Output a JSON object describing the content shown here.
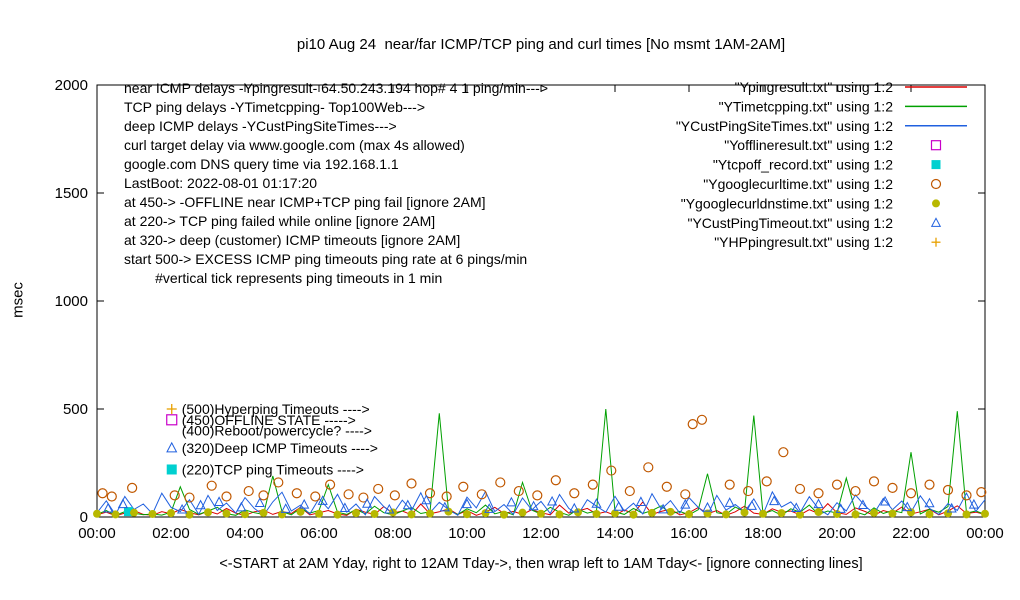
{
  "chart_data": {
    "type": "mixed-time-series",
    "title": "pi10 Aug 24  near/far ICMP/TCP ping and curl times [No msmt 1AM-2AM]",
    "xlabel": "<-START at 2AM Yday, right to 12AM Tday->, then wrap left to 1AM Tday<- [ignore connecting lines]",
    "ylabel": "msec",
    "ylim": [
      0,
      2000
    ],
    "xlim_hours": [
      0,
      24
    ],
    "yticks": [
      0,
      500,
      1000,
      1500,
      2000
    ],
    "xtick_labels": [
      "00:00",
      "02:00",
      "04:00",
      "06:00",
      "08:00",
      "10:00",
      "12:00",
      "14:00",
      "16:00",
      "18:00",
      "20:00",
      "22:00",
      "00:00"
    ],
    "grid": false,
    "legend_position": "top-right",
    "notes": [
      "near ICMP delays -Ypingresult- 64.50.243.194 hop# 4 1 ping/min--->",
      "TCP ping delays -YTimetcpping- Top100Web--->",
      "deep ICMP delays -YCustPingSiteTimes--->",
      "curl target delay via www.google.com (max 4s allowed)",
      "google.com DNS query time via 192.168.1.1",
      "LastBoot: 2022-08-01 01:17:20",
      "at 450-> -OFFLINE near ICMP+TCP ping fail [ignore 2AM]",
      "at 220-> TCP ping failed while online [ignore 2AM]",
      "at 320-> deep (customer) ICMP timeouts [ignore 2AM]",
      "start 500-> EXCESS ICMP ping timeouts ping rate at 6 pings/min",
      "        #vertical tick represents ping timeouts in 1 min"
    ],
    "annotations": [
      {
        "x": 2.02,
        "y": 500,
        "marker": "plus",
        "color": "#e8a000",
        "text": "(500)Hyperping Timeouts ---->"
      },
      {
        "x": 2.02,
        "y": 450,
        "marker": "square-open",
        "color": "#c800c8",
        "text": "(450)OFFLINE STATE ----->"
      },
      {
        "x": 2.02,
        "y": 400,
        "marker": "none",
        "color": "#000000",
        "text": "(400)Reboot/powercycle? ---->"
      },
      {
        "x": 2.02,
        "y": 320,
        "marker": "triangle-open",
        "color": "#2060df",
        "text": "(320)Deep ICMP Timeouts ---->"
      },
      {
        "x": 2.02,
        "y": 220,
        "marker": "square-filled",
        "color": "#00d0d0",
        "text": "(220)TCP ping Timeouts ---->"
      }
    ],
    "series": [
      {
        "name": "near-icmp-ping",
        "label": "\"Ypingresult.txt\" using 1:2",
        "type": "line",
        "color": "#dd0000",
        "x_start": 0,
        "x_step": 0.25,
        "values": [
          10,
          22,
          6,
          18,
          30,
          12,
          8,
          25,
          15,
          35,
          20,
          10,
          28,
          14,
          40,
          18,
          8,
          24,
          32,
          12,
          26,
          16,
          45,
          10,
          20,
          30,
          14,
          8,
          36,
          22,
          12,
          48,
          18,
          28,
          10,
          60,
          15,
          24,
          38,
          12,
          30,
          8,
          22,
          45,
          16,
          26,
          12,
          34,
          20,
          10,
          55,
          18,
          28,
          40,
          14,
          24,
          8,
          32,
          16,
          70,
          12,
          26,
          36,
          10,
          20,
          44,
          15,
          30,
          8,
          24,
          50,
          18,
          12,
          38,
          22,
          28,
          10,
          34,
          16,
          62,
          20,
          12,
          42,
          26,
          8,
          30,
          18,
          46,
          14,
          24,
          36,
          10,
          28,
          52,
          16,
          22,
          12
        ]
      },
      {
        "name": "tcp-ping",
        "label": "\"YTimetcpping.txt\" using 1:2",
        "type": "line",
        "color": "#00a000",
        "x_start": 0,
        "x_step": 0.25,
        "values": [
          12,
          30,
          8,
          25,
          18,
          10,
          14,
          9,
          22,
          140,
          35,
          12,
          28,
          45,
          15,
          8,
          33,
          20,
          12,
          190,
          25,
          10,
          40,
          18,
          30,
          150,
          22,
          12,
          35,
          15,
          50,
          20,
          10,
          28,
          44,
          16,
          24,
          480,
          30,
          12,
          38,
          20,
          55,
          15,
          26,
          10,
          160,
          32,
          14,
          45,
          22,
          8,
          36,
          18,
          28,
          500,
          24,
          12,
          40,
          16,
          30,
          52,
          14,
          26,
          10,
          34,
          200,
          20,
          12,
          46,
          25,
          470,
          15,
          30,
          8,
          38,
          22,
          55,
          12,
          28,
          18,
          180,
          24,
          10,
          42,
          16,
          30,
          20,
          300,
          14,
          36,
          22,
          48,
          490,
          18,
          28,
          12
        ]
      },
      {
        "name": "deep-icmp",
        "label": "\"YCustPingSiteTimes.txt\" using 1:2",
        "type": "line",
        "color": "#2060df",
        "x_start": 0,
        "x_step": 0.25,
        "values": [
          20,
          75,
          10,
          95,
          35,
          60,
          15,
          110,
          45,
          25,
          80,
          12,
          100,
          30,
          65,
          18,
          90,
          40,
          8,
          70,
          115,
          28,
          55,
          14,
          85,
          38,
          105,
          22,
          60,
          10,
          95,
          48,
          15,
          78,
          30,
          112,
          20,
          68,
          35,
          8,
          92,
          42,
          118,
          25,
          58,
          12,
          88,
          33,
          72,
          16,
          104,
          40,
          10,
          80,
          50,
          22,
          96,
          28,
          64,
          14,
          108,
          36,
          76,
          18,
          90,
          44,
          8,
          100,
          32,
          58,
          24,
          84,
          12,
          116,
          46,
          70,
          20,
          94,
          38,
          10,
          66,
          28,
          102,
          52,
          16,
          86,
          34,
          74,
          22,
          98,
          40,
          12,
          62,
          30,
          110,
          26,
          80
        ]
      },
      {
        "name": "offline-result",
        "label": "\"Yofflineresult.txt\" using 1:2",
        "type": "square-open",
        "color": "#c800c8",
        "points": []
      },
      {
        "name": "tcp-offline-record",
        "label": "\"Ytcpoff_record.txt\" using 1:2",
        "type": "square-filled",
        "color": "#00d0d0",
        "points": [
          [
            0.85,
            25
          ]
        ]
      },
      {
        "name": "google-curl-time",
        "label": "\"Ygooglecurltime.txt\" using 1:2",
        "type": "circle-open",
        "color": "#c05800",
        "points": [
          [
            0.15,
            110
          ],
          [
            0.4,
            95
          ],
          [
            0.95,
            135
          ],
          [
            2.1,
            100
          ],
          [
            2.5,
            90
          ],
          [
            3.1,
            145
          ],
          [
            3.5,
            95
          ],
          [
            4.1,
            120
          ],
          [
            4.5,
            100
          ],
          [
            4.9,
            160
          ],
          [
            5.4,
            110
          ],
          [
            5.9,
            95
          ],
          [
            6.3,
            150
          ],
          [
            6.8,
            105
          ],
          [
            7.2,
            90
          ],
          [
            7.6,
            130
          ],
          [
            8.05,
            100
          ],
          [
            8.5,
            155
          ],
          [
            9.0,
            110
          ],
          [
            9.45,
            95
          ],
          [
            9.9,
            140
          ],
          [
            10.4,
            105
          ],
          [
            10.9,
            160
          ],
          [
            11.4,
            120
          ],
          [
            11.9,
            100
          ],
          [
            12.4,
            170
          ],
          [
            12.9,
            110
          ],
          [
            13.4,
            150
          ],
          [
            13.9,
            215
          ],
          [
            14.4,
            120
          ],
          [
            14.9,
            230
          ],
          [
            15.4,
            140
          ],
          [
            15.9,
            105
          ],
          [
            16.1,
            430
          ],
          [
            16.35,
            450
          ],
          [
            17.1,
            150
          ],
          [
            17.6,
            120
          ],
          [
            18.1,
            165
          ],
          [
            18.55,
            300
          ],
          [
            19.0,
            130
          ],
          [
            19.5,
            110
          ],
          [
            20.0,
            150
          ],
          [
            20.5,
            120
          ],
          [
            21.0,
            165
          ],
          [
            21.5,
            135
          ],
          [
            22.0,
            110
          ],
          [
            22.5,
            150
          ],
          [
            23.0,
            125
          ],
          [
            23.5,
            100
          ],
          [
            23.9,
            115
          ]
        ]
      },
      {
        "name": "google-dns-time",
        "label": "\"Ygooglecurldnstime.txt\" using 1:2",
        "type": "circle-filled",
        "color": "#b8b800",
        "x_start": 0,
        "x_step": 0.5,
        "values": [
          15,
          12,
          20,
          14,
          18,
          11,
          22,
          16,
          13,
          19,
          12,
          24,
          15,
          11,
          18,
          14,
          21,
          12,
          16,
          25,
          13,
          18,
          11,
          20,
          15,
          12,
          22,
          14,
          17,
          11,
          19,
          24,
          13,
          16,
          12,
          21,
          15,
          18,
          11,
          23,
          14,
          12,
          19,
          16,
          22,
          13,
          17,
          12,
          15
        ]
      },
      {
        "name": "cust-ping-timeout",
        "label": "\"YCustPingTimeout.txt\" using 1:2",
        "type": "triangle-open",
        "color": "#2060df",
        "points": [
          [
            0.3,
            40
          ],
          [
            0.7,
            60
          ],
          [
            2.3,
            35
          ],
          [
            2.8,
            55
          ],
          [
            3.3,
            70
          ],
          [
            3.9,
            45
          ],
          [
            4.4,
            65
          ],
          [
            5.1,
            38
          ],
          [
            5.6,
            58
          ],
          [
            6.1,
            75
          ],
          [
            6.7,
            42
          ],
          [
            7.3,
            62
          ],
          [
            7.9,
            35
          ],
          [
            8.4,
            55
          ],
          [
            8.9,
            78
          ],
          [
            9.4,
            45
          ],
          [
            10.0,
            60
          ],
          [
            10.6,
            38
          ],
          [
            11.2,
            68
          ],
          [
            11.8,
            50
          ],
          [
            12.3,
            72
          ],
          [
            12.9,
            40
          ],
          [
            13.5,
            62
          ],
          [
            14.1,
            48
          ],
          [
            14.7,
            70
          ],
          [
            15.3,
            36
          ],
          [
            15.9,
            58
          ],
          [
            16.5,
            44
          ],
          [
            17.1,
            66
          ],
          [
            17.7,
            52
          ],
          [
            18.3,
            74
          ],
          [
            18.9,
            42
          ],
          [
            19.5,
            60
          ],
          [
            20.1,
            38
          ],
          [
            20.7,
            56
          ],
          [
            21.3,
            72
          ],
          [
            21.9,
            46
          ],
          [
            22.5,
            64
          ],
          [
            23.1,
            40
          ],
          [
            23.7,
            58
          ]
        ]
      },
      {
        "name": "hp-ping-result",
        "label": "\"YHPpingresult.txt\" using 1:2",
        "type": "plus",
        "color": "#e8a000",
        "points": []
      }
    ]
  }
}
